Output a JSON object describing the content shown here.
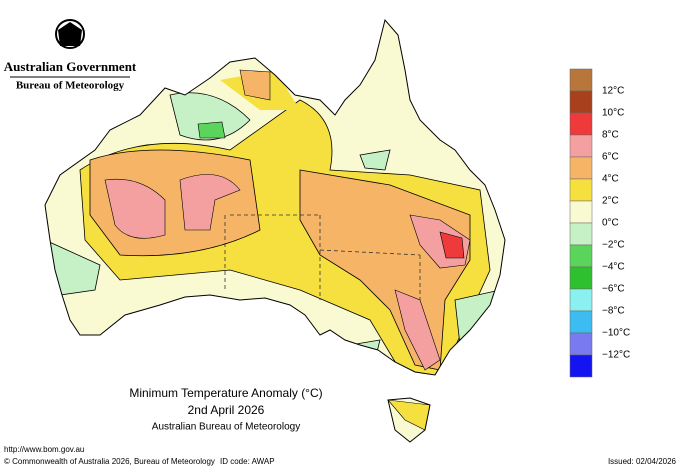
{
  "header": {
    "government": "Australian Government",
    "bureau": "Bureau of Meteorology"
  },
  "title": {
    "lines": [
      "Minimum Temperature Anomaly (°C)",
      "2nd April 2026",
      "Australian Bureau of Meteorology"
    ]
  },
  "legend": {
    "colors": [
      "#b8763a",
      "#a8401e",
      "#ee3a3a",
      "#f5a0a0",
      "#f6b466",
      "#f6e040",
      "#fafad2",
      "#c6f0c6",
      "#5ad45a",
      "#2ec02e",
      "#8af0f0",
      "#3cbcf0",
      "#7a7af0",
      "#1414f0"
    ],
    "labels": [
      "12°C",
      "10°C",
      "8°C",
      "6°C",
      "4°C",
      "2°C",
      "0°C",
      "−2°C",
      "−4°C",
      "−6°C",
      "−8°C",
      "−10°C",
      "−12°C"
    ]
  },
  "footer": {
    "url": "http://www.bom.gov.au",
    "copyright": "© Commonwealth of Australia 2026, Bureau of Meteorology",
    "id_code": "ID code: AWAP",
    "issued": "Issued: 02/04/2026"
  }
}
